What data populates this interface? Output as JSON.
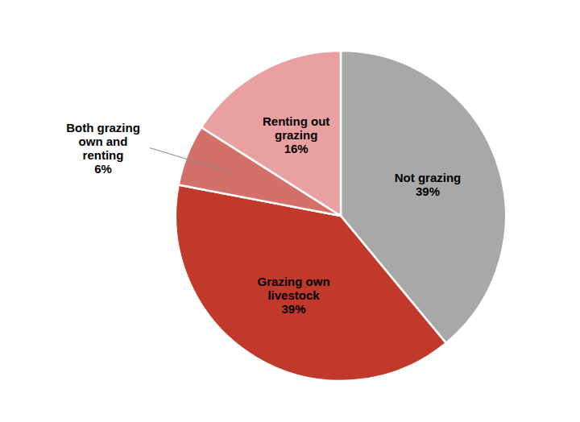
{
  "chart_data": {
    "type": "pie",
    "categories": [
      "Not grazing\n39%",
      "Grazing own\nlivestock\n39%",
      "Both grazing\nown and\nrenting\n6%",
      "Renting out\ngrazing\n16%"
    ],
    "values": [
      39,
      39,
      6,
      16
    ],
    "colors": [
      "#a8a8a8",
      "#c0392b",
      "#d4706a",
      "#e8a0a0"
    ]
  }
}
